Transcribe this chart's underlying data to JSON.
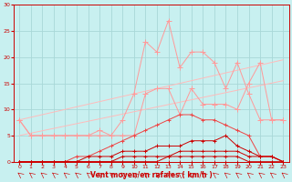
{
  "background_color": "#c8f0f0",
  "grid_color": "#a8d8d8",
  "dark_red": "#cc0000",
  "mid_red": "#ee4444",
  "light_red": "#ff9999",
  "lighter_red": "#ffbbbb",
  "xlabel": "Vent moyen/en rafales ( km/h )",
  "xlim": [
    -0.5,
    23.5
  ],
  "ylim": [
    0,
    30
  ],
  "yticks": [
    0,
    5,
    10,
    15,
    20,
    25,
    30
  ],
  "xticks": [
    0,
    1,
    2,
    3,
    4,
    5,
    6,
    7,
    8,
    9,
    10,
    11,
    12,
    13,
    14,
    15,
    16,
    17,
    18,
    19,
    20,
    21,
    22,
    23
  ],
  "x": [
    0,
    1,
    2,
    3,
    4,
    5,
    6,
    7,
    8,
    9,
    10,
    11,
    12,
    13,
    14,
    15,
    16,
    17,
    18,
    19,
    20,
    21,
    22,
    23
  ],
  "spiky_light": [
    8,
    5,
    5,
    5,
    5,
    5,
    5,
    6,
    5,
    8,
    13,
    23,
    21,
    27,
    18,
    21,
    21,
    19,
    14,
    19,
    13,
    8,
    8,
    8
  ],
  "medium_light": [
    8,
    5,
    5,
    5,
    5,
    5,
    5,
    5,
    5,
    5,
    5,
    13,
    14,
    14,
    9,
    14,
    11,
    11,
    11,
    10,
    15,
    19,
    8,
    8
  ],
  "trend_upper_start": 0.5,
  "trend_upper_end": 19.5,
  "trend_lower_start": 0.5,
  "trend_lower_end": 15.5,
  "dark_upper": [
    0,
    0,
    0,
    0,
    0,
    1,
    1,
    2,
    3,
    4,
    5,
    6,
    7,
    8,
    9,
    9,
    8,
    8,
    7,
    6,
    5,
    1,
    1,
    0
  ],
  "dark_mid": [
    0,
    0,
    0,
    0,
    0,
    0,
    1,
    1,
    1,
    2,
    2,
    2,
    3,
    3,
    3,
    4,
    4,
    4,
    5,
    3,
    2,
    1,
    1,
    0
  ],
  "dark_low1": [
    0,
    0,
    0,
    0,
    0,
    0,
    0,
    0,
    0,
    1,
    1,
    1,
    1,
    1,
    2,
    2,
    2,
    2,
    2,
    2,
    1,
    1,
    1,
    0
  ],
  "dark_low2": [
    0,
    0,
    0,
    0,
    0,
    0,
    0,
    0,
    0,
    0,
    0,
    0,
    0,
    1,
    1,
    1,
    1,
    1,
    1,
    1,
    0,
    0,
    0,
    0
  ],
  "dark_flat": [
    0,
    0,
    0,
    0,
    0,
    0,
    0,
    0,
    0,
    0,
    0,
    0,
    0,
    0,
    0,
    0,
    0,
    0,
    0,
    0,
    0,
    0,
    0,
    0
  ]
}
